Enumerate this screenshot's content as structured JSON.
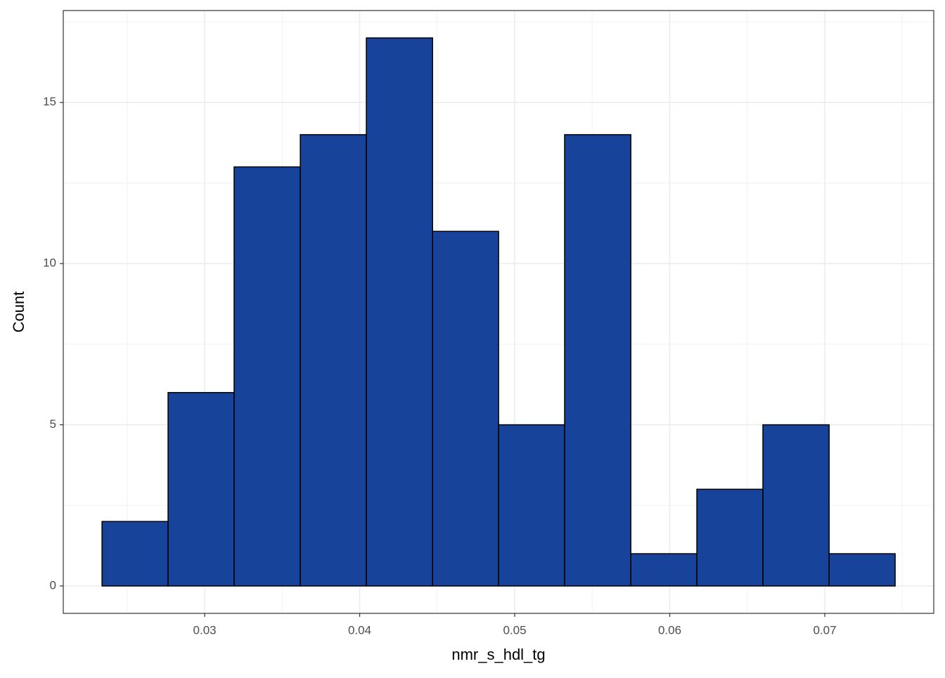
{
  "chart_data": {
    "type": "histogram",
    "x_label": "nmr_s_hdl_tg",
    "y_label": "Count",
    "bins": [
      0.02338,
      0.02764,
      0.0319,
      0.03617,
      0.04043,
      0.0447,
      0.04896,
      0.05322,
      0.05749,
      0.06175,
      0.06601,
      0.07028,
      0.07454
    ],
    "values": [
      2,
      6,
      13,
      14,
      17,
      11,
      5,
      14,
      1,
      3,
      5,
      1
    ],
    "color": "#17449a",
    "edge_color": "#000000",
    "xlim": [
      0.02088,
      0.07703
    ],
    "xticks": [
      0.03,
      0.04,
      0.05,
      0.06,
      0.07
    ],
    "ylim": [
      -0.85,
      17.85
    ],
    "yticks": [
      0,
      5,
      10,
      15
    ],
    "grid": true
  }
}
